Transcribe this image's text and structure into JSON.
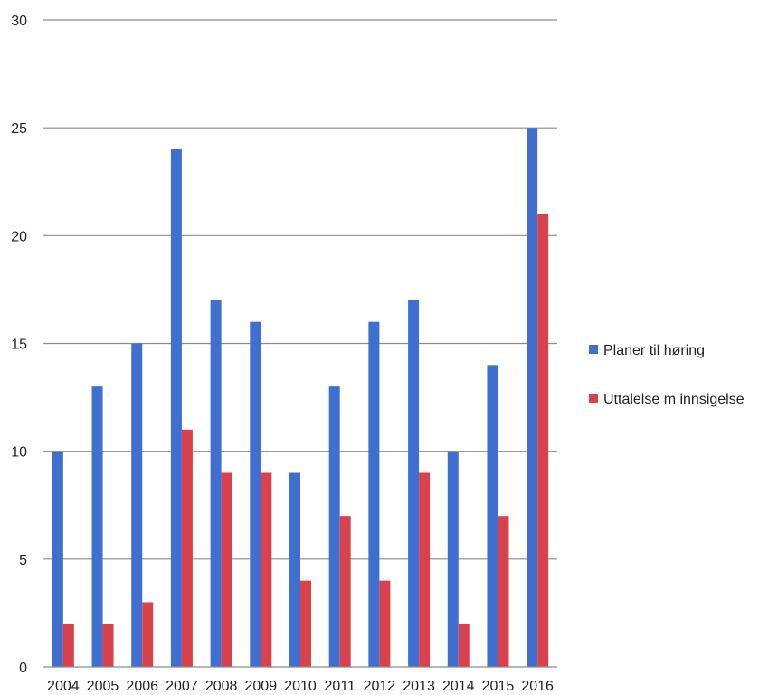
{
  "chart_data": {
    "type": "bar",
    "title": "",
    "xlabel": "",
    "ylabel": "",
    "ylim": [
      0,
      30
    ],
    "yticks": [
      0,
      5,
      10,
      15,
      20,
      25,
      30
    ],
    "grid": true,
    "legend_position": "right",
    "categories": [
      "2004",
      "2005",
      "2006",
      "2007",
      "2008",
      "2009",
      "2010",
      "2011",
      "2012",
      "2013",
      "2014",
      "2015",
      "2016"
    ],
    "series": [
      {
        "name": "Planer til høring",
        "color": "#3f6fcf",
        "values": [
          10,
          13,
          15,
          24,
          17,
          16,
          9,
          13,
          16,
          17,
          10,
          14,
          25
        ]
      },
      {
        "name": "Uttalelse m innsigelse",
        "color": "#d9424c",
        "values": [
          2,
          2,
          3,
          11,
          9,
          9,
          4,
          7,
          4,
          9,
          2,
          7,
          21
        ]
      }
    ]
  }
}
